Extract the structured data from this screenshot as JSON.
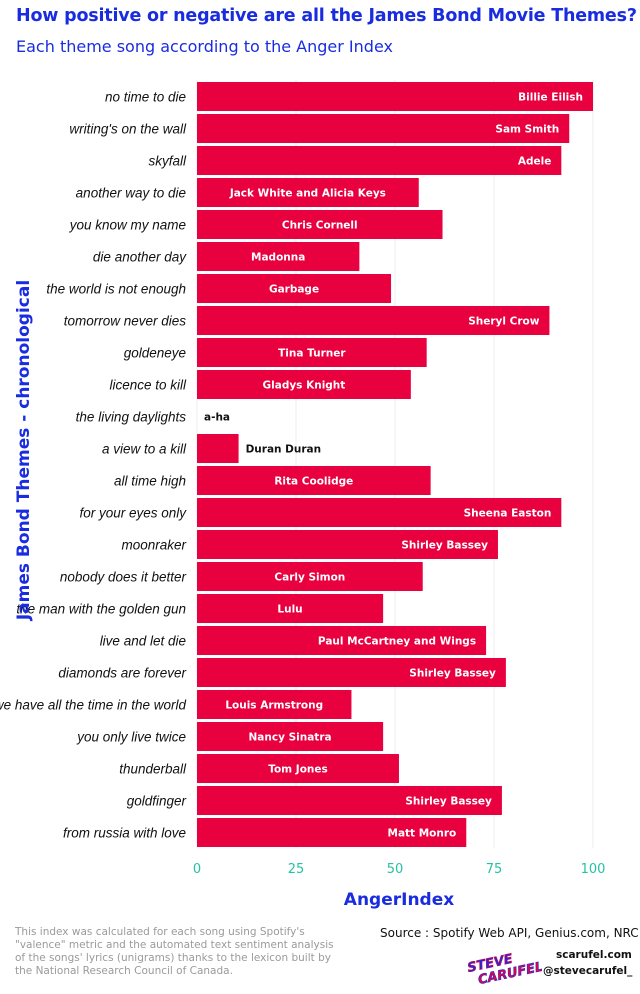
{
  "title": "How positive or negative are all the James Bond Movie Themes?",
  "subtitle": "Each theme song according to the Anger Index",
  "footer": {
    "footnote": "This index was calculated for each song using Spotify's \"valence\" metric and the automated text sentiment analysis of the songs' lyrics (unigrams) thanks to the lexicon built by the National Research Council of Canada.",
    "source": "Source : Spotify Web API, Genius.com, NRC",
    "logo_text_top": "STEVE",
    "logo_text_bottom": "CARUFEL",
    "site": "scarufel.com",
    "handle": "@stevecarufel_"
  },
  "colors": {
    "bar": "#e8003f",
    "title": "#1a2ce0",
    "tick": "#27c2a3",
    "label_inside": "#ffffff",
    "label_outside": "#111111"
  },
  "chart_data": {
    "type": "bar",
    "orientation": "horizontal",
    "xlabel": "AngerIndex",
    "ylabel": "James Bond Themes - chronological",
    "xlim": [
      0,
      100
    ],
    "xticks": [
      0,
      25,
      50,
      75,
      100
    ],
    "grid": true,
    "categories": [
      "no time to die",
      "writing's on the wall",
      "skyfall",
      "another way to die",
      "you know my name",
      "die another day",
      "the world is not enough",
      "tomorrow never dies",
      "goldeneye",
      "licence to kill",
      "the living daylights",
      "a view to a kill",
      "all time high",
      "for your eyes only",
      "moonraker",
      "nobody does it better",
      "the man with the golden gun",
      "live and let die",
      "diamonds are forever",
      "we have all the time in the world",
      "you only live twice",
      "thunderball",
      "goldfinger",
      "from russia with love"
    ],
    "artists": [
      "Billie Eilish",
      "Sam Smith",
      "Adele",
      "Jack White and Alicia Keys",
      "Chris Cornell",
      "Madonna",
      "Garbage",
      "Sheryl Crow",
      "Tina Turner",
      "Gladys Knight",
      "a-ha",
      "Duran Duran",
      "Rita Coolidge",
      "Sheena Easton",
      "Shirley Bassey",
      "Carly Simon",
      "Lulu",
      "Paul McCartney and Wings",
      "Shirley Bassey",
      "Louis Armstrong",
      "Nancy Sinatra",
      "Tom Jones",
      "Shirley Bassey",
      "Matt Monro"
    ],
    "values": [
      100,
      94,
      92,
      56,
      62,
      41,
      49,
      89,
      58,
      54,
      0,
      10.5,
      59,
      92,
      76,
      57,
      47,
      73,
      78,
      39,
      47,
      51,
      77,
      68
    ]
  }
}
